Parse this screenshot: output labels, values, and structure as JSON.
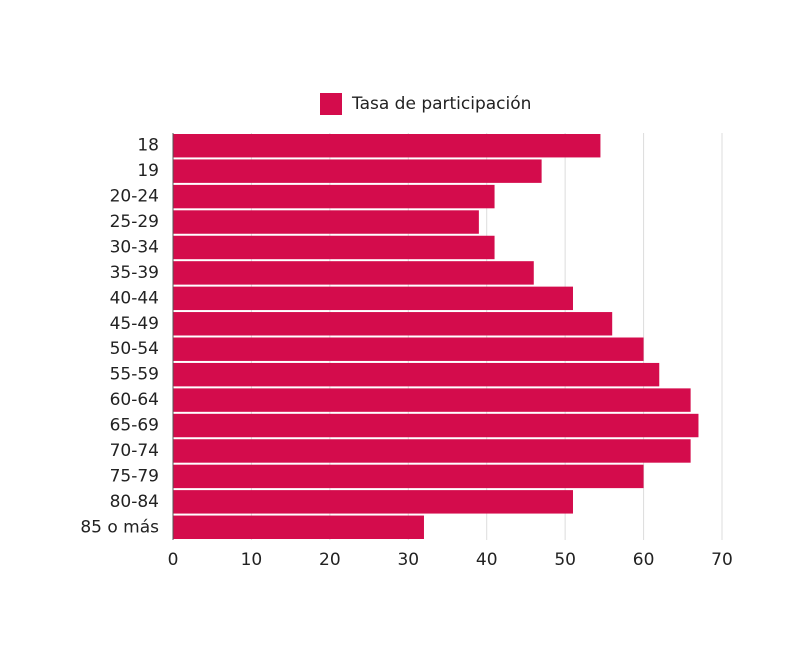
{
  "chart_data": {
    "type": "bar",
    "orientation": "horizontal",
    "categories": [
      "18",
      "19",
      "20-24",
      "25-29",
      "30-34",
      "35-39",
      "40-44",
      "45-49",
      "50-54",
      "55-59",
      "60-64",
      "65-69",
      "70-74",
      "75-79",
      "80-84",
      "85 o más"
    ],
    "series": [
      {
        "name": "Tasa de participación",
        "color": "#d40c4c",
        "values": [
          54.5,
          47,
          41,
          39,
          41,
          46,
          51,
          56,
          60,
          62,
          66,
          67,
          66,
          60,
          51,
          32
        ]
      }
    ],
    "xlim": [
      0,
      70
    ],
    "xticks": [
      0,
      10,
      20,
      30,
      40,
      50,
      60,
      70
    ],
    "grid": true,
    "legend": "top"
  }
}
